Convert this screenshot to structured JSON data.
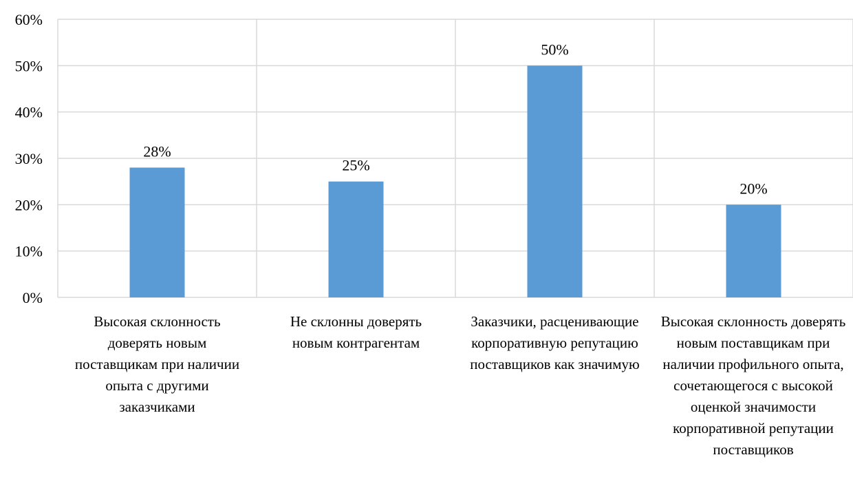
{
  "chart_data": {
    "type": "bar",
    "categories": [
      "Высокая склонность доверять новым поставщикам при наличии опыта с другими заказчиками",
      "Не склонны доверять новым контрагентам",
      "Заказчики, расценивающие корпоративную репутацию поставщиков как значимую",
      "Высокая склонность доверять новым поставщикам при наличии профильного опыта, сочетающегося с высокой оценкой значимости корпоративной репутации поставщиков"
    ],
    "values": [
      28,
      25,
      50,
      20
    ],
    "data_labels": [
      "28%",
      "25%",
      "50%",
      "20%"
    ],
    "y_ticks": [
      "0%",
      "10%",
      "20%",
      "30%",
      "40%",
      "50%",
      "60%"
    ],
    "ylim": [
      0,
      60
    ],
    "title": "",
    "xlabel": "",
    "ylabel": "",
    "grid": true,
    "bar_color": "#5b9bd5",
    "grid_color": "#d9d9d9"
  }
}
